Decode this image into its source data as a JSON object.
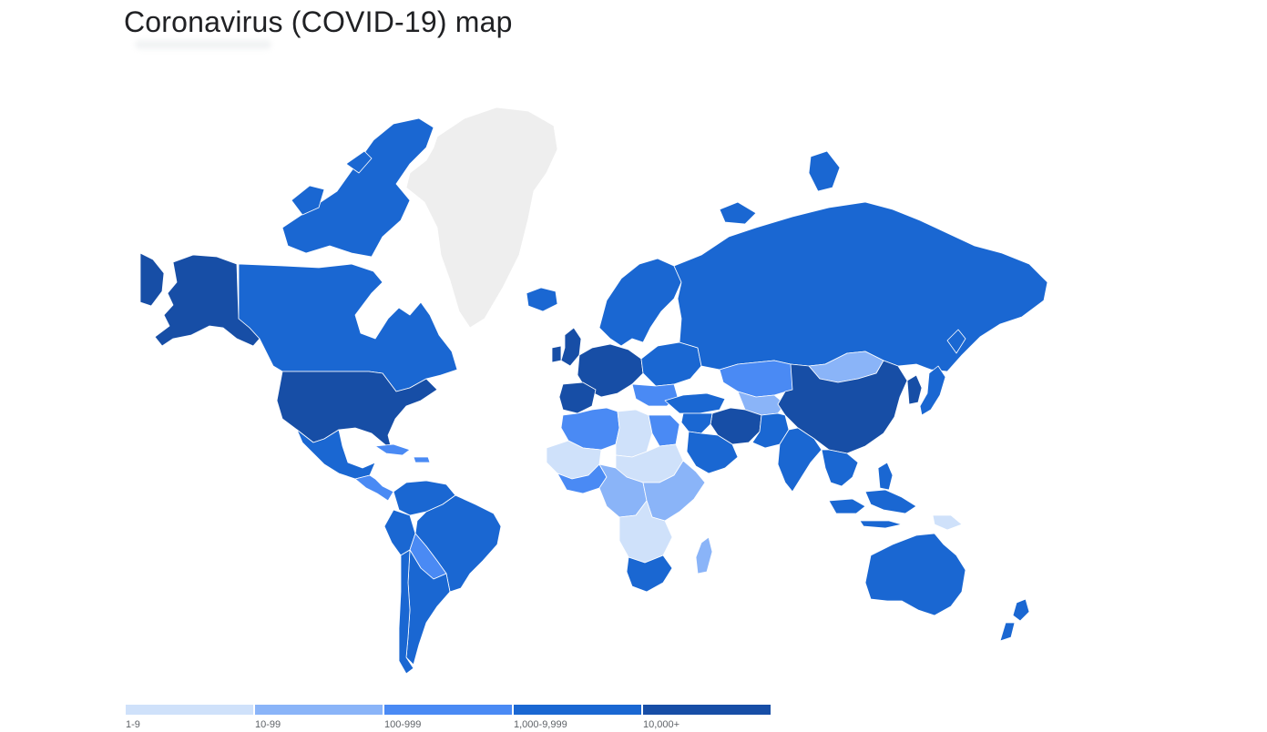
{
  "title": "Coronavirus (COVID-19) map",
  "colors": {
    "no_data": "#eeeeee",
    "bin_1_9": "#cfe1fa",
    "bin_10_99": "#8ab4f8",
    "bin_100_999": "#4a8af4",
    "bin_1000_9999": "#1a67d2",
    "bin_10000_plus": "#174ea6"
  },
  "legend": [
    {
      "label": "1-9",
      "color": "#cfe1fa"
    },
    {
      "label": "10-99",
      "color": "#8ab4f8"
    },
    {
      "label": "100-999",
      "color": "#4a8af4"
    },
    {
      "label": "1,000-9,999",
      "color": "#1a67d2"
    },
    {
      "label": "10,000+",
      "color": "#174ea6"
    }
  ],
  "regions": [
    {
      "id": "alaska",
      "bin": "bin_10000_plus"
    },
    {
      "id": "canada",
      "bin": "bin_1000_9999"
    },
    {
      "id": "canada-arctic",
      "bin": "bin_1000_9999"
    },
    {
      "id": "greenland",
      "bin": "no_data"
    },
    {
      "id": "usa",
      "bin": "bin_10000_plus"
    },
    {
      "id": "mexico",
      "bin": "bin_1000_9999"
    },
    {
      "id": "central-america",
      "bin": "bin_100_999"
    },
    {
      "id": "caribbean",
      "bin": "bin_100_999"
    },
    {
      "id": "colombia-venezuela",
      "bin": "bin_1000_9999"
    },
    {
      "id": "brazil",
      "bin": "bin_1000_9999"
    },
    {
      "id": "peru",
      "bin": "bin_1000_9999"
    },
    {
      "id": "bolivia-paraguay",
      "bin": "bin_100_999"
    },
    {
      "id": "argentina",
      "bin": "bin_1000_9999"
    },
    {
      "id": "chile",
      "bin": "bin_1000_9999"
    },
    {
      "id": "iceland",
      "bin": "bin_1000_9999"
    },
    {
      "id": "uk",
      "bin": "bin_10000_plus"
    },
    {
      "id": "scandinavia",
      "bin": "bin_1000_9999"
    },
    {
      "id": "western-europe",
      "bin": "bin_10000_plus"
    },
    {
      "id": "iberia",
      "bin": "bin_10000_plus"
    },
    {
      "id": "eastern-europe",
      "bin": "bin_1000_9999"
    },
    {
      "id": "balkans",
      "bin": "bin_100_999"
    },
    {
      "id": "turkey",
      "bin": "bin_1000_9999"
    },
    {
      "id": "russia",
      "bin": "bin_1000_9999"
    },
    {
      "id": "kazakhstan",
      "bin": "bin_100_999"
    },
    {
      "id": "central-asia",
      "bin": "bin_10_99"
    },
    {
      "id": "mongolia",
      "bin": "bin_10_99"
    },
    {
      "id": "china",
      "bin": "bin_10000_plus"
    },
    {
      "id": "iran",
      "bin": "bin_10000_plus"
    },
    {
      "id": "middle-east",
      "bin": "bin_1000_9999"
    },
    {
      "id": "saudi-arabia",
      "bin": "bin_1000_9999"
    },
    {
      "id": "pakistan-afghan",
      "bin": "bin_1000_9999"
    },
    {
      "id": "india",
      "bin": "bin_1000_9999"
    },
    {
      "id": "se-asia",
      "bin": "bin_1000_9999"
    },
    {
      "id": "japan",
      "bin": "bin_1000_9999"
    },
    {
      "id": "korea",
      "bin": "bin_10000_plus"
    },
    {
      "id": "indonesia",
      "bin": "bin_1000_9999"
    },
    {
      "id": "philippines",
      "bin": "bin_1000_9999"
    },
    {
      "id": "png",
      "bin": "bin_1_9"
    },
    {
      "id": "australia",
      "bin": "bin_1000_9999"
    },
    {
      "id": "new-zealand",
      "bin": "bin_1000_9999"
    },
    {
      "id": "north-africa",
      "bin": "bin_100_999"
    },
    {
      "id": "libya-niger",
      "bin": "bin_1_9"
    },
    {
      "id": "egypt",
      "bin": "bin_100_999"
    },
    {
      "id": "west-africa",
      "bin": "bin_1_9"
    },
    {
      "id": "west-africa-coast",
      "bin": "bin_100_999"
    },
    {
      "id": "central-africa",
      "bin": "bin_10_99"
    },
    {
      "id": "sudan-chad",
      "bin": "bin_1_9"
    },
    {
      "id": "east-africa",
      "bin": "bin_10_99"
    },
    {
      "id": "southern-africa",
      "bin": "bin_1_9"
    },
    {
      "id": "south-africa",
      "bin": "bin_1000_9999"
    },
    {
      "id": "madagascar",
      "bin": "bin_10_99"
    }
  ]
}
